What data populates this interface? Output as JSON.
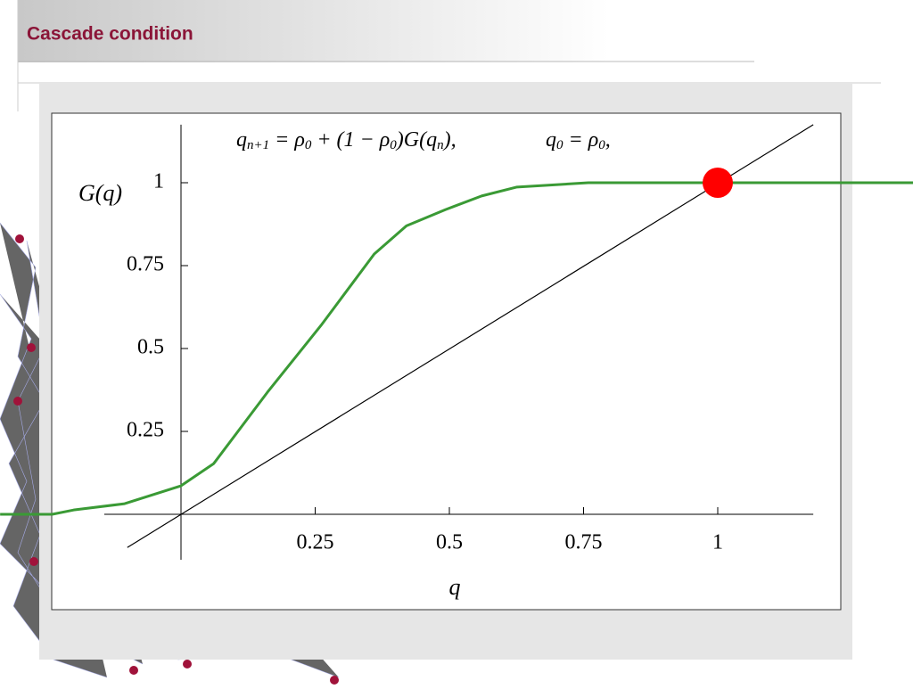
{
  "slide_title": "Cascade condition",
  "chart_data": {
    "type": "line",
    "equations": [
      [
        "q",
        "n+1",
        " = ρ",
        "0",
        " + (1 − ρ",
        "0",
        ")G(q",
        "n",
        "),"
      ],
      [
        "q",
        "0",
        " = ρ",
        "0",
        ","
      ]
    ],
    "y_label": "G(q)",
    "x_label": "q",
    "xlim": [
      -0.143,
      1.178
    ],
    "ylim": [
      -0.137,
      1.175
    ],
    "xticks": [
      0.25,
      0.5,
      0.75,
      1
    ],
    "yticks": [
      0.25,
      0.5,
      0.75,
      1
    ],
    "series": [
      {
        "color": "#3a9a35",
        "x": [
          -0.337,
          -0.24,
          -0.2,
          -0.105,
          0,
          0.061,
          0.161,
          0.261,
          0.36,
          0.42,
          0.493,
          0.56,
          0.626,
          0.759,
          1.364
        ],
        "values": [
          0,
          0,
          0.013,
          0.032,
          0.086,
          0.153,
          0.368,
          0.57,
          0.785,
          0.87,
          0.919,
          0.96,
          0.987,
          1.0,
          1.0
        ]
      },
      {
        "color": "#000000",
        "x": [
          -0.1,
          1.178
        ],
        "values": [
          -0.1,
          1.175
        ]
      },
      {
        "color": "#ff0000",
        "x": [
          1
        ],
        "values": [
          1
        ],
        "marker": "dot"
      }
    ]
  }
}
